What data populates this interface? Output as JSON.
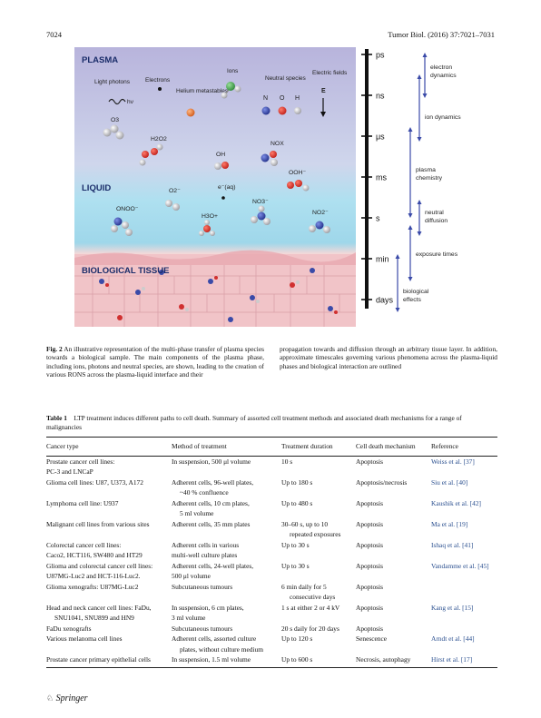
{
  "header": {
    "page": "7024",
    "journal": "Tumor Biol. (2016) 37:7021–7031"
  },
  "figure": {
    "plasma_label": "PLASMA",
    "liquid_label": "LIQUID",
    "tissue_label": "BIOLOGICAL TISSUE",
    "light_label": "Light photons",
    "hv": "hν",
    "electrons": "Electrons",
    "helium": "Helium metastables",
    "ions": "Ions",
    "neutral": "Neutral species",
    "n_label": "N",
    "o_label": "O",
    "h_label": "H",
    "fields": "Electric fields",
    "e_label": "E",
    "species": {
      "o3": "O3",
      "h2o2": "H2O2",
      "oh": "OH",
      "nox": "NOX",
      "ooh": "OOH⁻",
      "onoo": "ONOO⁻",
      "o2": "O2⁻",
      "eaq": "e⁻(aq)",
      "h3o": "H3O+",
      "no3": "NO3⁻",
      "no2": "NO2⁻"
    }
  },
  "timescale": {
    "ticks": [
      "ps",
      "ns",
      "μs",
      "ms",
      "s",
      "min",
      "days"
    ],
    "phenomena": [
      "electron dynamics",
      "ion dynamics",
      "plasma chemistry",
      "neutral diffusion",
      "exposure times",
      "biological effects"
    ]
  },
  "caption": {
    "label": "Fig. 2",
    "left": "An illustrative representation of the multi-phase transfer of plasma species towards a biological sample. The main components of the plasma phase, including ions, photons and neutral species, are shown, leading to the creation of various RONS across the plasma-liquid interface and their",
    "right": "propagation towards and diffusion through an arbitrary tissue layer. In addition, approximate timescales governing various phenomena across the plasma-liquid phases and biological interaction are outlined"
  },
  "table": {
    "label": "Table 1",
    "caption": "LTP treatment induces different paths to cell death. Summary of assorted cell treatment methods and associated death mechanisms for a range of malignancies",
    "headers": [
      "Cancer type",
      "Method of treatment",
      "Treatment duration",
      "Cell death mechanism",
      "Reference"
    ],
    "rows": [
      [
        "Prostate cancer cell lines:",
        "In suspension, 500 μl volume",
        "10 s",
        "Apoptosis",
        "Weiss et al. [37]"
      ],
      [
        "PC-3 and LNCaP",
        "",
        "",
        "",
        ""
      ],
      [
        "Glioma cell lines: U87, U373, A172",
        "Adherent cells, 96-well plates,",
        "Up to 180 s",
        "Apoptosis/necrosis",
        "Siu et al. [40]"
      ],
      [
        "",
        "~40 % confluence",
        "",
        "",
        ""
      ],
      [
        "Lymphoma cell line: U937",
        "Adherent cells, 10 cm plates,",
        "Up to 480 s",
        "Apoptosis",
        "Kaushik et al. [42]"
      ],
      [
        "",
        "5 ml volume",
        "",
        "",
        ""
      ],
      [
        "Malignant cell lines from various sites",
        "Adherent cells, 35 mm plates",
        "30–60 s, up to 10",
        "Apoptosis",
        "Ma et al. [19]"
      ],
      [
        "",
        "",
        "repeated exposures",
        "",
        ""
      ],
      [
        "Colorectal cancer cell lines:",
        "Adherent cells in various",
        "Up to 30 s",
        "Apoptosis",
        "Ishaq et al. [41]"
      ],
      [
        "Caco2, HCT116, SW480 and HT29",
        "multi-well culture plates",
        "",
        "",
        ""
      ],
      [
        "Glioma and colorectal cancer cell lines:",
        "Adherent cells, 24-well plates,",
        "Up to 30 s",
        "Apoptosis",
        "Vandamme et al. [45]"
      ],
      [
        "U87MG-Luc2 and HCT-116-Luc2.",
        "500 μl volume",
        "",
        "",
        ""
      ],
      [
        "Glioma xenografts: U87MG-Luc2",
        "Subcutaneous tumours",
        "6 min daily for 5",
        "Apoptosis",
        ""
      ],
      [
        "",
        "",
        "consecutive days",
        "",
        ""
      ],
      [
        "Head and neck cancer cell lines: FaDu,",
        "In suspension, 6 cm plates,",
        "1 s at either 2 or 4 kV",
        "Apoptosis",
        "Kang et al. [15]"
      ],
      [
        "SNU1041, SNU899 and HN9",
        "3 ml volume",
        "",
        "",
        ""
      ],
      [
        "FaDu xenografts",
        "Subcutaneous tumours",
        "20 s daily for 20 days",
        "Apoptosis",
        ""
      ],
      [
        "Various melanoma cell lines",
        "Adherent cells, assorted culture",
        "Up to 120 s",
        "Senescence",
        "Arndt et al. [44]"
      ],
      [
        "",
        "plates, without culture medium",
        "",
        "",
        ""
      ],
      [
        "Prostate cancer primary epithelial cells",
        "In suspension, 1.5 ml volume",
        "Up to 600 s",
        "Necrosis, autophagy",
        "Hirst et al. [17]"
      ]
    ]
  },
  "footer": {
    "publisher": "Springer"
  }
}
